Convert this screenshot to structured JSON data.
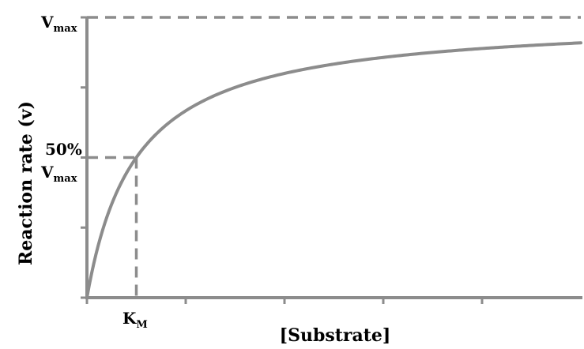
{
  "chart_data": {
    "type": "line",
    "model": "Michaelis-Menten",
    "xlabel": "[Substrate]",
    "ylabel": "Reaction rate (v)",
    "xlim": [
      0,
      5
    ],
    "ylim": [
      0,
      1
    ],
    "vmax": 1,
    "km": 0.5,
    "x_ticks": [
      0,
      1,
      2,
      3,
      4
    ],
    "y_ticks": [
      0,
      0.25,
      0.5,
      0.75,
      1
    ],
    "series": [
      {
        "x": [
          0,
          0.25,
          0.5,
          1,
          1.5,
          2,
          2.5,
          3,
          3.5,
          4,
          4.5,
          5
        ],
        "y": [
          0,
          0.333,
          0.5,
          0.667,
          0.75,
          0.8,
          0.833,
          0.857,
          0.875,
          0.889,
          0.9,
          0.909
        ],
        "color": "#8c8c8c"
      }
    ],
    "guides": {
      "vmax_line": {
        "y": 1
      },
      "half_vmax_line": {
        "y": 0.5,
        "x_end": 0.5
      },
      "km_line": {
        "x": 0.5,
        "y_end": 0.5
      }
    },
    "labels": {
      "vmax": {
        "main": "V",
        "sub": "max"
      },
      "half_vmax_prefix": "50%",
      "half_vmax": {
        "main": "V",
        "sub": "max"
      },
      "km": {
        "main": "K",
        "sub": "M"
      }
    },
    "grid": false,
    "legend": "none"
  }
}
